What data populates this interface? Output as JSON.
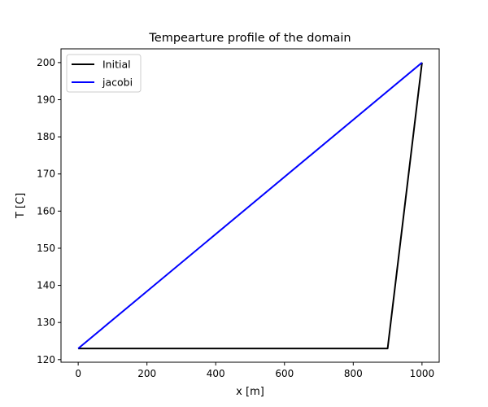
{
  "chart_data": {
    "type": "line",
    "title": "Tempearture profile of the domain",
    "xlabel": "x [m]",
    "ylabel": "T [C]",
    "xlim": [
      -50,
      1050
    ],
    "ylim": [
      119.3,
      203.7
    ],
    "xticks": [
      0,
      200,
      400,
      600,
      800,
      1000
    ],
    "yticks": [
      120,
      130,
      140,
      150,
      160,
      170,
      180,
      190,
      200
    ],
    "grid": false,
    "legend_position": "top-left",
    "series": [
      {
        "name": "Initial",
        "color": "#000000",
        "x": [
          0,
          900,
          1000
        ],
        "y": [
          123,
          123,
          200
        ]
      },
      {
        "name": "jacobi",
        "color": "#0000ff",
        "x": [
          0,
          1000
        ],
        "y": [
          123,
          200
        ]
      }
    ]
  }
}
